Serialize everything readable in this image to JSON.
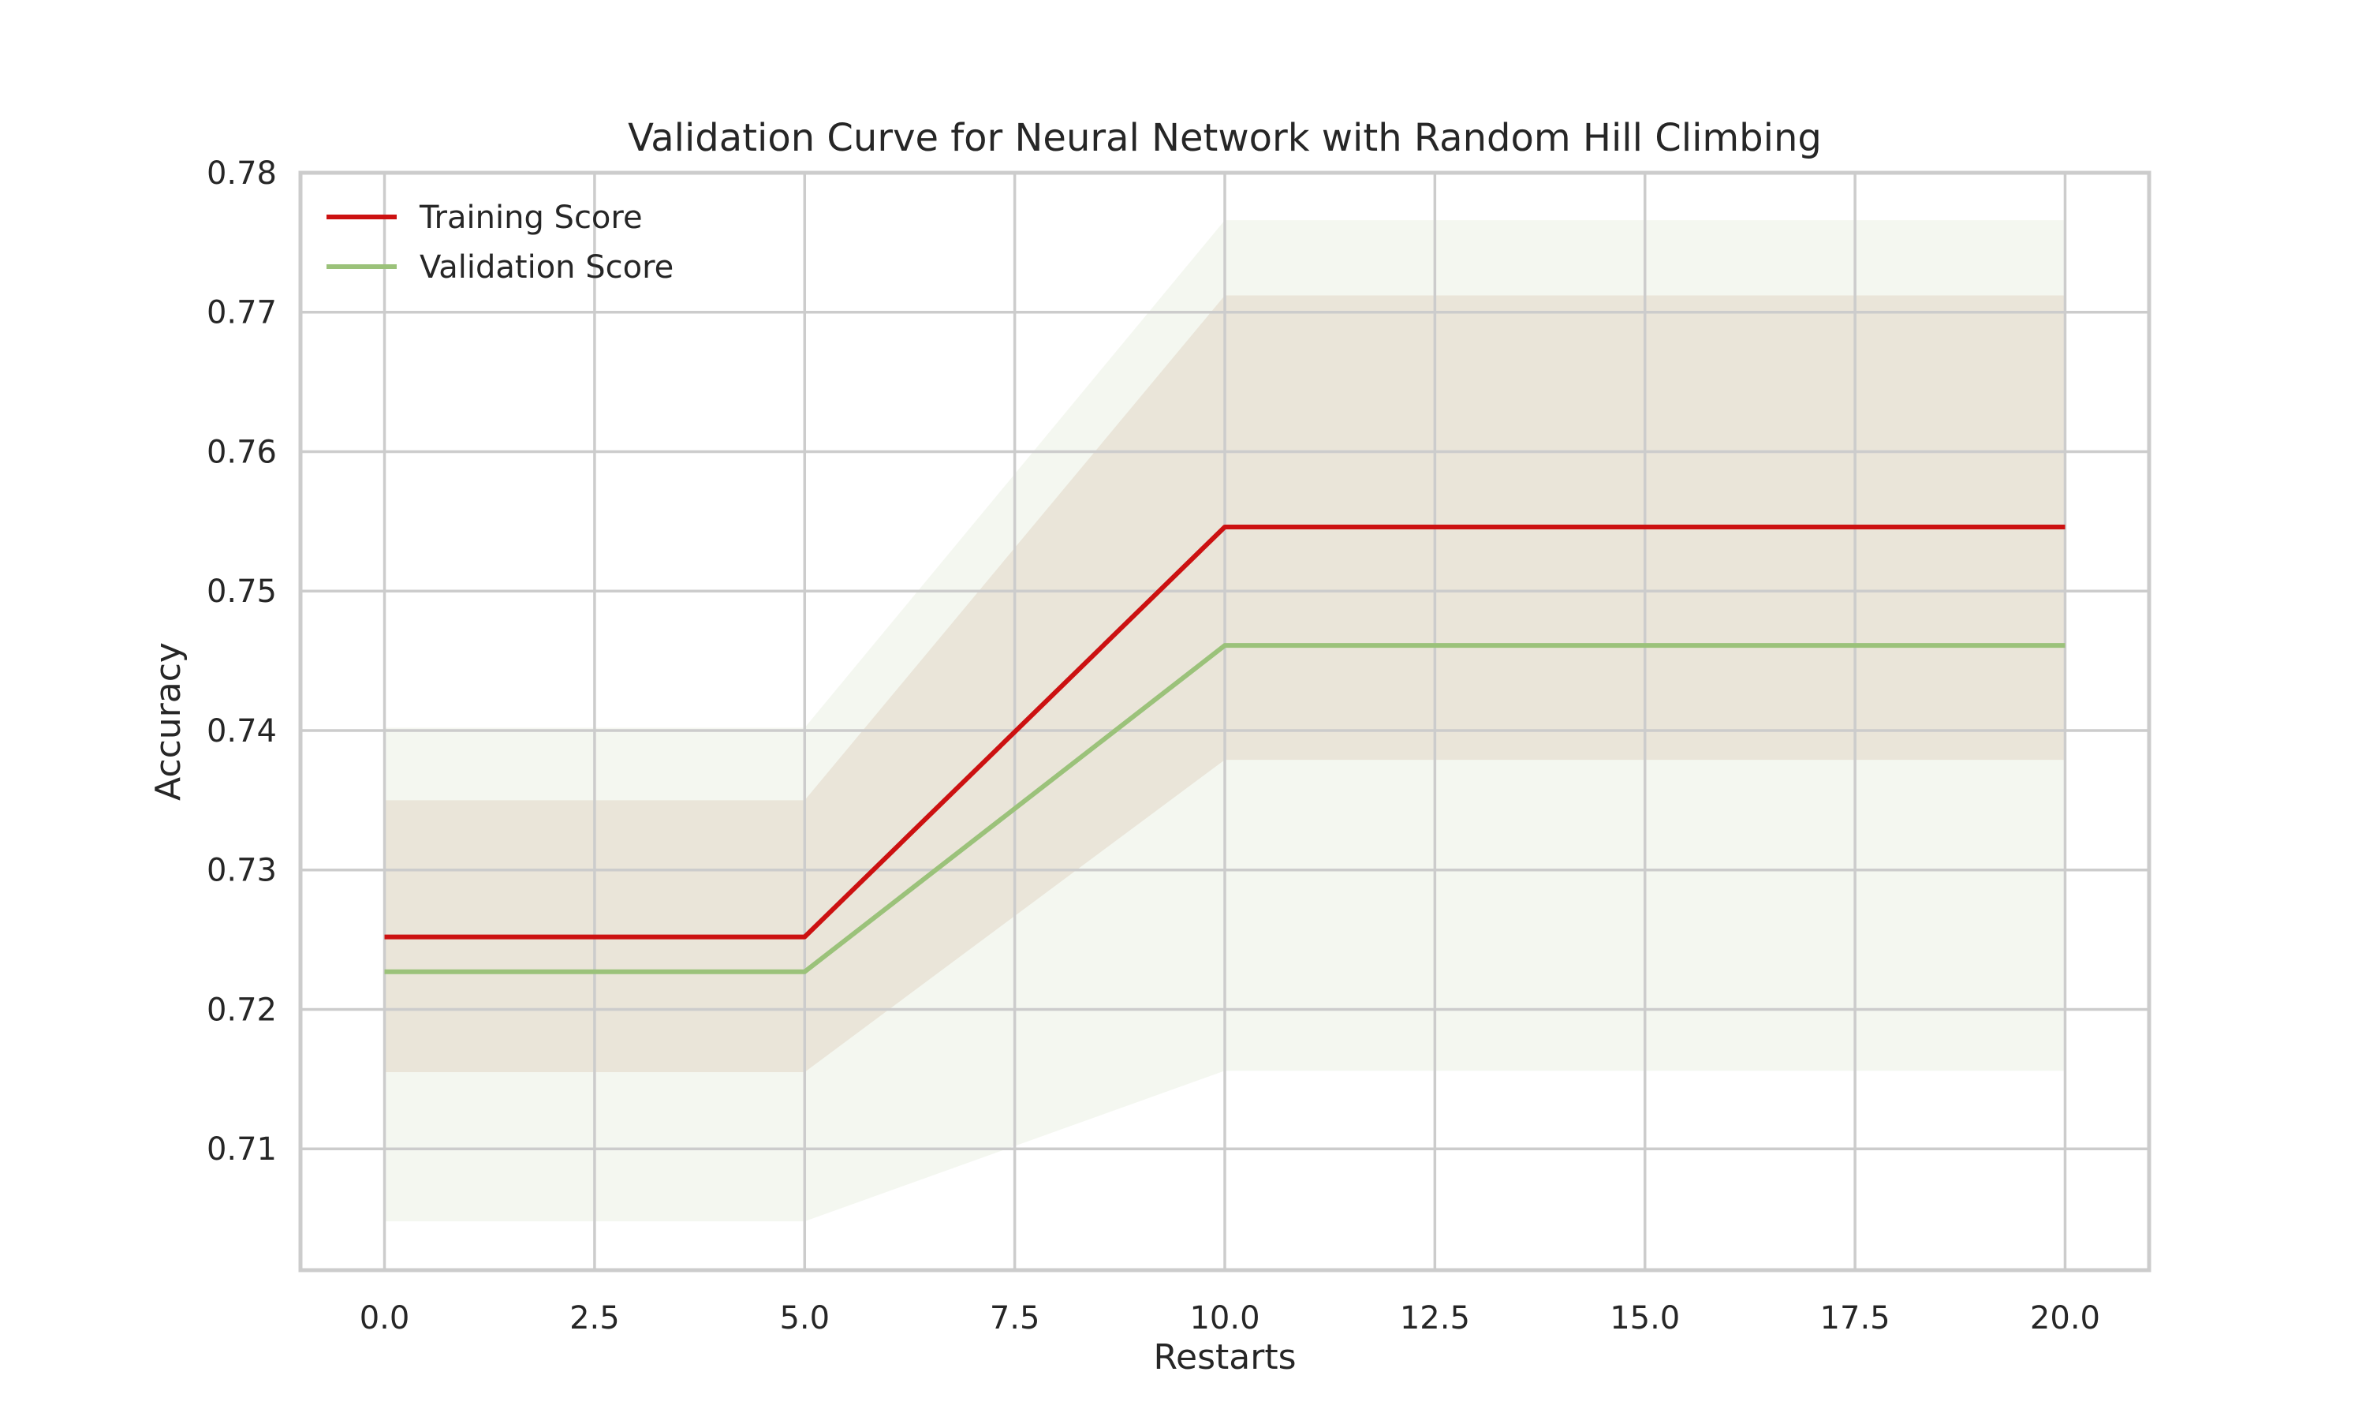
{
  "chart_data": {
    "type": "line",
    "title": "Validation Curve for Neural Network with Random Hill Climbing",
    "xlabel": "Restarts",
    "ylabel": "Accuracy",
    "x": [
      0,
      5,
      10,
      20
    ],
    "xlim": [
      -1,
      21
    ],
    "ylim": [
      0.7013,
      0.78
    ],
    "xticks": [
      0,
      2.5,
      5,
      7.5,
      10,
      12.5,
      15,
      17.5,
      20
    ],
    "xtick_labels": [
      "0.0",
      "2.5",
      "5.0",
      "7.5",
      "10.0",
      "12.5",
      "15.0",
      "17.5",
      "20.0"
    ],
    "yticks": [
      0.71,
      0.72,
      0.73,
      0.74,
      0.75,
      0.76,
      0.77,
      0.78
    ],
    "ytick_labels": [
      "0.71",
      "0.72",
      "0.73",
      "0.74",
      "0.75",
      "0.76",
      "0.77",
      "0.78"
    ],
    "grid": true,
    "legend_position": "top-left",
    "series": [
      {
        "name": "Training Score",
        "color": "#cc1111",
        "band_color": "#d7b59f",
        "band_opacity": 0.4,
        "values": [
          0.7252,
          0.7252,
          0.7546,
          0.7546
        ],
        "lower": [
          0.7155,
          0.7155,
          0.7379,
          0.7379
        ],
        "upper": [
          0.735,
          0.735,
          0.7712,
          0.7712
        ]
      },
      {
        "name": "Validation Score",
        "color": "#9bc27a",
        "band_color": "#e3ebd9",
        "band_opacity": 0.4,
        "values": [
          0.7227,
          0.7227,
          0.7461,
          0.7461
        ],
        "lower": [
          0.7048,
          0.7048,
          0.7156,
          0.7156
        ],
        "upper": [
          0.7402,
          0.7402,
          0.7766,
          0.7766
        ]
      }
    ]
  }
}
